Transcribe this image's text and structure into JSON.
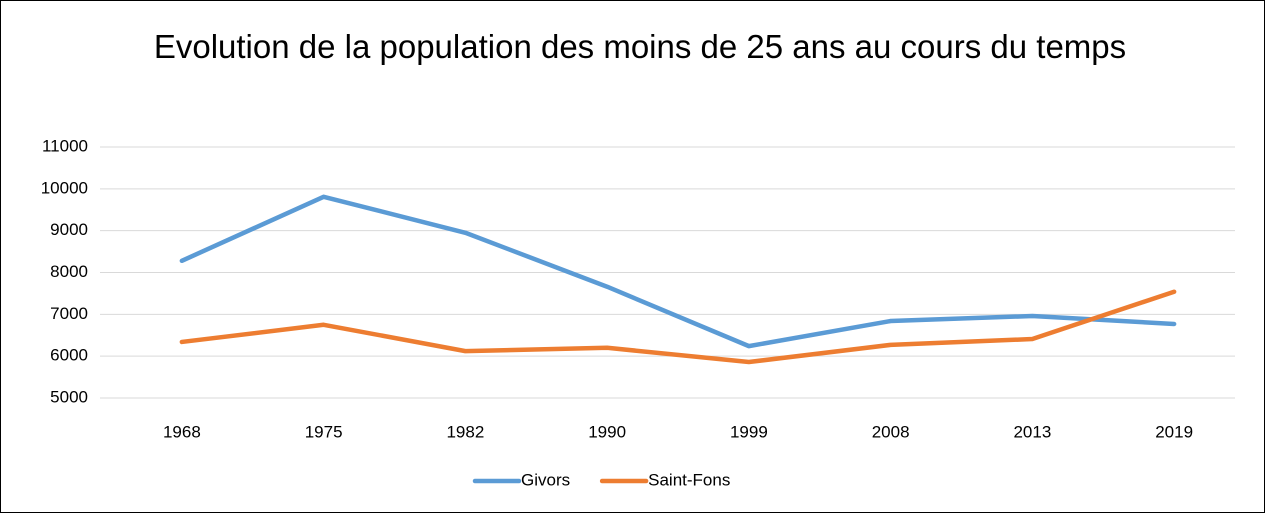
{
  "chart_data": {
    "type": "line",
    "title": "Evolution de la population des moins de 25 ans au cours du temps",
    "categories": [
      "1968",
      "1975",
      "1982",
      "1990",
      "1999",
      "2008",
      "2013",
      "2019"
    ],
    "series": [
      {
        "name": "Givors",
        "color": "#5b9bd5",
        "values": [
          8280,
          9810,
          8950,
          7660,
          6240,
          6840,
          6960,
          6770
        ]
      },
      {
        "name": "Saint-Fons",
        "color": "#ed7d31",
        "values": [
          6340,
          6750,
          6120,
          6200,
          5860,
          6270,
          6410,
          7540
        ]
      }
    ],
    "ylim": [
      5000,
      11000
    ],
    "yticks": [
      5000,
      6000,
      7000,
      8000,
      9000,
      10000,
      11000
    ],
    "grid": true,
    "legend": "bottom"
  }
}
